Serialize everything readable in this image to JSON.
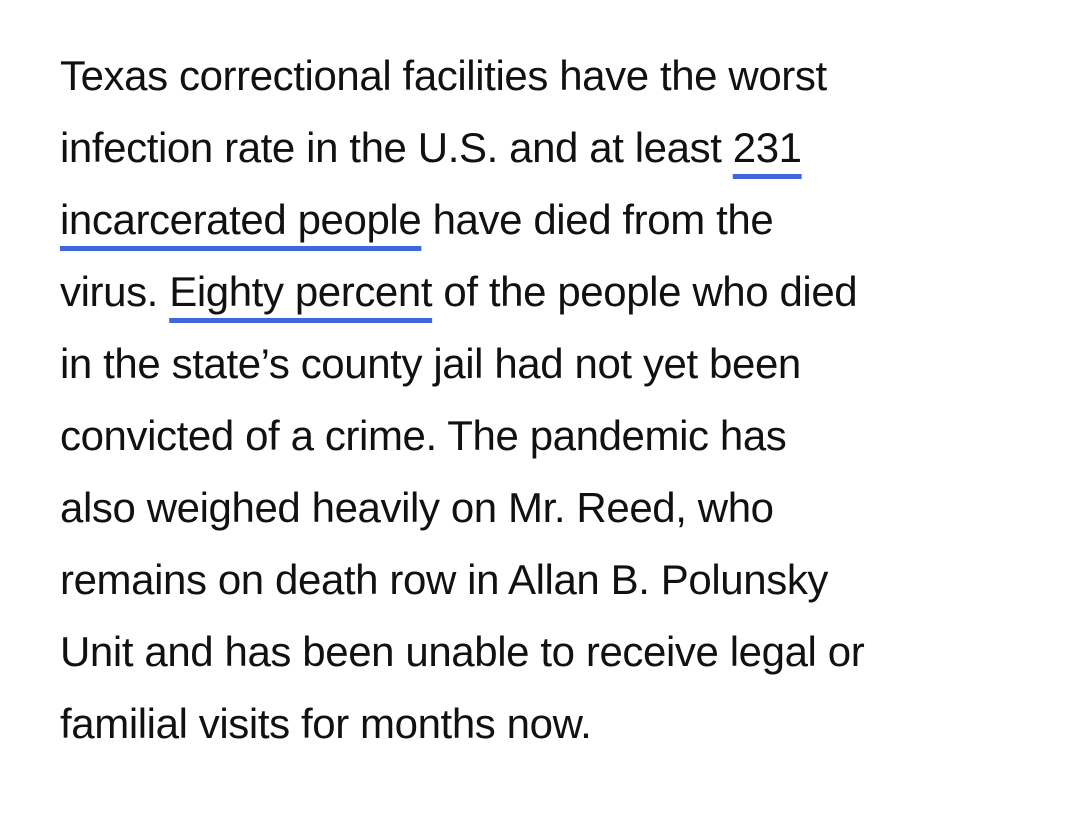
{
  "paragraph": {
    "lines": [
      [
        {
          "text": "Texas correctional facilities have the worst",
          "link": false
        }
      ],
      [
        {
          "text": "infection rate in the U.S. and at least ",
          "link": false
        },
        {
          "text": "231",
          "link": true
        }
      ],
      [
        {
          "text": "incarcerated people",
          "link": true
        },
        {
          "text": " have died from the",
          "link": false
        }
      ],
      [
        {
          "text": "virus. ",
          "link": false
        },
        {
          "text": "Eighty percent",
          "link": true
        },
        {
          "text": " of the people who died",
          "link": false
        }
      ],
      [
        {
          "text": "in the state’s county jail had not yet been",
          "link": false
        }
      ],
      [
        {
          "text": "convicted of a crime. The pandemic has",
          "link": false
        }
      ],
      [
        {
          "text": "also weighed heavily on Mr. Reed, who",
          "link": false
        }
      ],
      [
        {
          "text": "remains on death row in Allan B. Polunsky",
          "link": false
        }
      ],
      [
        {
          "text": "Unit and has been unable to receive legal or",
          "link": false
        }
      ],
      [
        {
          "text": "familial visits for months now.",
          "link": false
        }
      ]
    ]
  }
}
